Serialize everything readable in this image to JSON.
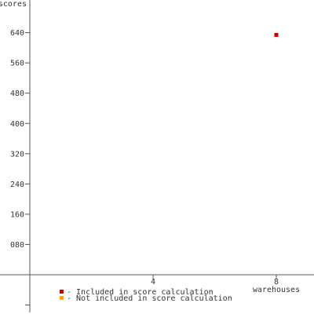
{
  "chart_data": {
    "type": "scatter",
    "title": "",
    "xlabel": "warehouses",
    "ylabel": "scores",
    "xlim": [
      0,
      9
    ],
    "ylim": [
      -80,
      720
    ],
    "x_ticks": [
      4,
      8
    ],
    "x_tick_labels": [
      "4",
      "8"
    ],
    "y_ticks": [
      80,
      160,
      240,
      320,
      400,
      480,
      560,
      640
    ],
    "y_tick_labels": [
      "080",
      "160",
      "240",
      "320",
      "400",
      "480",
      "560",
      "640"
    ],
    "grid": false,
    "legend_position": "bottom-left",
    "legend": [
      {
        "label": "- Included in score calculation",
        "color": "#cc0000"
      },
      {
        "label": "- Not included in score calculation",
        "color": "#ffaa00"
      }
    ],
    "series": [
      {
        "name": "- Included in score calculation",
        "color": "#cc0000",
        "points": [
          {
            "x": 8,
            "y": 634
          }
        ]
      },
      {
        "name": "- Not included in score calculation",
        "color": "#ffaa00",
        "points": []
      }
    ]
  }
}
